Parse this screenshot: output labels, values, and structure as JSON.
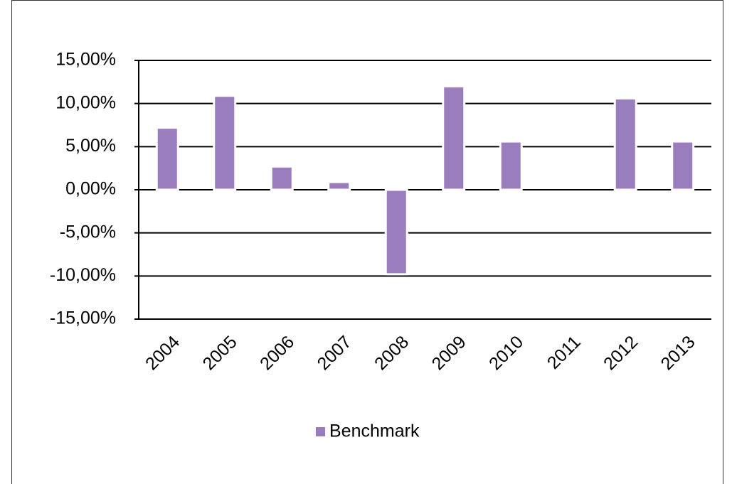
{
  "chart_data": {
    "type": "bar",
    "categories": [
      "2004",
      "2005",
      "2006",
      "2007",
      "2008",
      "2009",
      "2010",
      "2011",
      "2012",
      "2013"
    ],
    "series": [
      {
        "name": "Benchmark",
        "color": "#9a7dbd",
        "values": [
          7.2,
          10.9,
          2.7,
          0.9,
          -9.8,
          12.0,
          5.6,
          0,
          10.6,
          5.6
        ]
      }
    ],
    "ylim": [
      -15,
      15
    ],
    "yticks": [
      {
        "value": -15,
        "label": "-15,00%"
      },
      {
        "value": -10,
        "label": "-10,00%"
      },
      {
        "value": -5,
        "label": "-5,00%"
      },
      {
        "value": 0,
        "label": "0,00%"
      },
      {
        "value": 5,
        "label": "5,00%"
      },
      {
        "value": 10,
        "label": "10,00%"
      },
      {
        "value": 15,
        "label": "15,00%"
      }
    ],
    "grid": true,
    "legend": "bottom"
  }
}
